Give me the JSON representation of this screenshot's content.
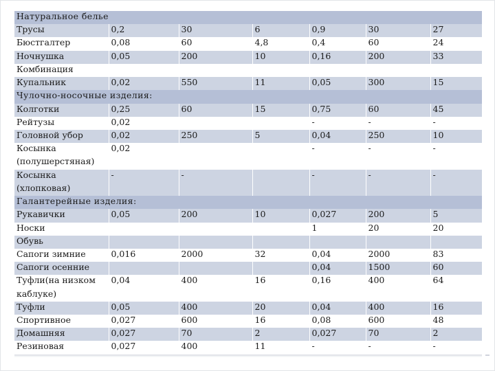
{
  "table": {
    "rows": [
      {
        "type": "heading",
        "name": "Натуральное белье"
      },
      {
        "type": "data",
        "shade": "band",
        "cells": [
          "Трусы",
          "0,2",
          "30",
          "6",
          "0,9",
          "30",
          "27"
        ]
      },
      {
        "type": "data",
        "shade": "white",
        "cells": [
          "Бюстгалтер",
          "0,08",
          "60",
          "4,8",
          "0,4",
          "60",
          "24"
        ]
      },
      {
        "type": "data",
        "shade": "band",
        "cells": [
          "Ночнушка",
          "0,05",
          "200",
          "10",
          "0,16",
          "200",
          "33"
        ]
      },
      {
        "type": "data",
        "shade": "white",
        "cells": [
          "Комбинация",
          "",
          "",
          "",
          "",
          "",
          ""
        ]
      },
      {
        "type": "data",
        "shade": "band",
        "cells": [
          "Купальник",
          "0,02",
          "550",
          "11",
          "0,05",
          "300",
          "15"
        ]
      },
      {
        "type": "heading",
        "name": "Чулочно-носочные изделия:"
      },
      {
        "type": "data",
        "shade": "band",
        "cells": [
          "Колготки",
          "0,25",
          "60",
          "15",
          "0,75",
          "60",
          "45"
        ]
      },
      {
        "type": "data",
        "shade": "white",
        "cells": [
          "Рейтузы",
          "0,02",
          "",
          "",
          "-",
          "-",
          "-"
        ]
      },
      {
        "type": "data",
        "shade": "band",
        "cells": [
          "Головной убор",
          "0,02",
          "250",
          "5",
          "0,04",
          "250",
          "10"
        ]
      },
      {
        "type": "data",
        "shade": "white",
        "cells": [
          "Косынка",
          "0,02",
          "",
          "",
          "-",
          "-",
          "-"
        ]
      },
      {
        "type": "data",
        "shade": "white",
        "cells": [
          "(полушерстяная)",
          "",
          "",
          "",
          "",
          "",
          ""
        ]
      },
      {
        "type": "data",
        "shade": "band",
        "cells": [
          "Косынка",
          "-",
          "-",
          "",
          "-",
          "-",
          "-"
        ]
      },
      {
        "type": "data",
        "shade": "band",
        "cells": [
          "(хлопковая)",
          "",
          "",
          "",
          "",
          "",
          ""
        ]
      },
      {
        "type": "heading",
        "name": "Галантерейные изделия:"
      },
      {
        "type": "data",
        "shade": "band",
        "cells": [
          "Рукавички",
          "0,05",
          "200",
          "10",
          "0,027",
          "200",
          "5"
        ]
      },
      {
        "type": "data",
        "shade": "white",
        "cells": [
          "Носки",
          "",
          "",
          "",
          "1",
          "20",
          "20"
        ]
      },
      {
        "type": "data",
        "shade": "band",
        "cells": [
          "Обувь",
          "",
          "",
          "",
          "",
          "",
          ""
        ]
      },
      {
        "type": "data",
        "shade": "white",
        "cells": [
          "Сапоги зимние",
          "0,016",
          "2000",
          "32",
          "0,04",
          "2000",
          "83"
        ]
      },
      {
        "type": "data",
        "shade": "band",
        "cells": [
          "Сапоги осенние",
          "",
          "",
          "",
          "0,04",
          "1500",
          "60"
        ]
      },
      {
        "type": "data",
        "shade": "white",
        "cells": [
          "Туфли(на низком",
          "0,04",
          "400",
          "16",
          "0,16",
          "400",
          "64"
        ]
      },
      {
        "type": "data",
        "shade": "white",
        "cells": [
          "каблуке)",
          "",
          "",
          "",
          "",
          "",
          ""
        ]
      },
      {
        "type": "data",
        "shade": "band",
        "cells": [
          "Туфли",
          "0,05",
          "400",
          "20",
          "0,04",
          "400",
          "16"
        ]
      },
      {
        "type": "data",
        "shade": "white",
        "cells": [
          "Спортивное",
          "0,027",
          "600",
          "16",
          "0,08",
          "600",
          "48"
        ]
      },
      {
        "type": "data",
        "shade": "band",
        "cells": [
          "Домашняя",
          "0,027",
          "70",
          "2",
          "0,027",
          "70",
          "2"
        ]
      },
      {
        "type": "data",
        "shade": "white",
        "cells": [
          "Резиновая",
          "0,027",
          "400",
          "11",
          "-",
          "-",
          "-"
        ]
      }
    ]
  }
}
